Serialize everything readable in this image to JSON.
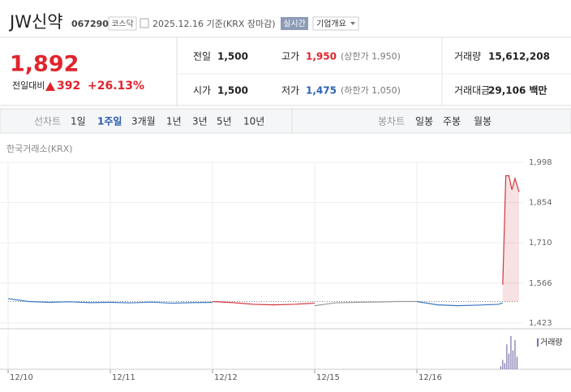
{
  "header": {
    "name": "JW신약",
    "code": "067290",
    "market": "코스닥",
    "date": "2025.12.16 기준(KRX 장마감)",
    "realtime": "실시간",
    "overview": "기업개요"
  },
  "quote": {
    "price": "1,892",
    "change_label": "전일대비",
    "change": "392",
    "change_pct": "+26.13%"
  },
  "stats": {
    "rows": [
      [
        {
          "label": "전일",
          "value": "1,500"
        },
        {
          "label": "고가",
          "value": "1,950",
          "sub": "(상한가 1,950)"
        },
        {
          "label": "거래량",
          "value": "15,612,208"
        }
      ],
      [
        {
          "label": "시가",
          "value": "1,500"
        },
        {
          "label": "저가",
          "value": "1,475",
          "sub": "(하한가 1,050)"
        },
        {
          "label": "거래대금",
          "value": "29,106 백만"
        }
      ]
    ]
  },
  "tabs": {
    "line_label": "선차트",
    "line_periods": [
      "1일",
      "1주일",
      "3개월",
      "1년",
      "3년",
      "5년",
      "10년"
    ],
    "active": 1,
    "candle_label": "봉차트",
    "candle_periods": [
      "일봉",
      "주봉",
      "월봉"
    ]
  },
  "source": "한국거래소(KRX)",
  "chart_data": {
    "type": "line",
    "xlim": [
      0,
      5
    ],
    "xticks": [
      {
        "value": 0,
        "label": "12/10"
      },
      {
        "value": 1,
        "label": "12/11"
      },
      {
        "value": 2,
        "label": "12/12"
      },
      {
        "value": 3,
        "label": "12/15"
      },
      {
        "value": 4,
        "label": "12/16"
      }
    ],
    "ylim": [
      1423,
      1998
    ],
    "yticks": [
      {
        "value": 1998,
        "label": "1,998"
      },
      {
        "value": 1854,
        "label": "1,854"
      },
      {
        "value": 1710,
        "label": "1,710"
      },
      {
        "value": 1566,
        "label": "1,566"
      },
      {
        "value": 1423,
        "label": "1,423"
      }
    ],
    "grid": true,
    "reference": 1500,
    "series": [
      {
        "color": "#3b78c2",
        "x": [
          0,
          0.2,
          0.4,
          0.6,
          0.8,
          1
        ],
        "values": [
          1510,
          1500,
          1497,
          1499,
          1496,
          1497
        ]
      },
      {
        "color": "#3b78c2",
        "x": [
          1,
          1.2,
          1.4,
          1.6,
          1.8,
          2
        ],
        "values": [
          1497,
          1495,
          1498,
          1494,
          1496,
          1497
        ]
      },
      {
        "color": "#d0363d",
        "x": [
          2,
          2.2,
          2.4,
          2.6,
          2.8,
          3
        ],
        "values": [
          1500,
          1496,
          1490,
          1488,
          1490,
          1494
        ]
      },
      {
        "color": "#999999",
        "x": [
          3,
          3.2,
          3.4,
          3.6,
          3.8,
          4
        ],
        "values": [
          1485,
          1495,
          1497,
          1498,
          1500,
          1500
        ]
      },
      {
        "color": "#3b78c2",
        "x": [
          4,
          4.2,
          4.4,
          4.6,
          4.8,
          4.84
        ],
        "values": [
          1500,
          1488,
          1485,
          1487,
          1490,
          1495
        ]
      },
      {
        "color": "#d0363d",
        "fill": true,
        "x": [
          4.84,
          4.87,
          4.9,
          4.93,
          4.96,
          5
        ],
        "values": [
          1560,
          1950,
          1950,
          1900,
          1940,
          1892
        ]
      }
    ],
    "volume": {
      "name": "거래량",
      "color": "#7b6fa8",
      "x": [
        4.82,
        4.84,
        4.86,
        4.88,
        4.9,
        4.92,
        4.94,
        4.96,
        4.98
      ],
      "values": [
        300000,
        900000,
        600000,
        2400000,
        1500000,
        3200000,
        1800000,
        2800000,
        1200000
      ]
    }
  }
}
